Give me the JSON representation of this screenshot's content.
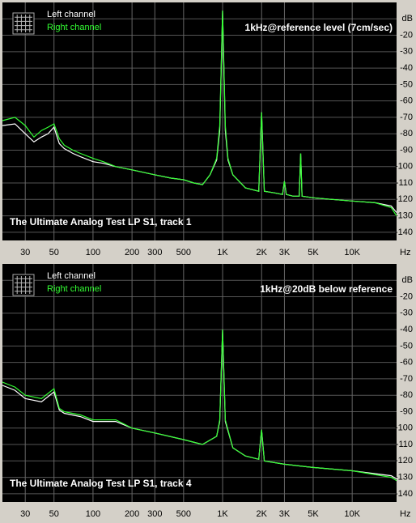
{
  "chart_data": [
    {
      "type": "line",
      "title": "1kHz@reference level (7cm/sec)",
      "annotation": "The Ultimate Analog Test LP S1, track 1",
      "x_label": "Hz",
      "log_x": true,
      "grid": true,
      "xlim": [
        20,
        22000
      ],
      "ylim": [
        -145,
        0
      ],
      "xticks": [
        30,
        50,
        100,
        200,
        300,
        500,
        {
          "value": 1000,
          "label": "1K"
        },
        {
          "value": 2000,
          "label": "2K"
        },
        {
          "value": 3000,
          "label": "3K"
        },
        {
          "value": 5000,
          "label": "5K"
        },
        {
          "value": 10000,
          "label": "10K"
        }
      ],
      "yticks": [
        {
          "value": -10,
          "label": "dB"
        },
        -20,
        -30,
        -40,
        -50,
        -60,
        -70,
        -80,
        -90,
        -100,
        -110,
        -120,
        -130,
        -140
      ],
      "x": [
        20,
        25,
        30,
        35,
        40,
        45,
        50,
        55,
        60,
        70,
        80,
        100,
        120,
        150,
        200,
        300,
        400,
        500,
        600,
        700,
        800,
        900,
        950,
        1000,
        1050,
        1100,
        1200,
        1500,
        1900,
        2000,
        2100,
        2500,
        2900,
        3000,
        3100,
        3500,
        3900,
        4000,
        4100,
        5000,
        7000,
        10000,
        15000,
        20000,
        22000
      ],
      "series": [
        {
          "name": "Left channel",
          "color": "#ffffff",
          "values": [
            -75,
            -74,
            -80,
            -85,
            -82,
            -80,
            -76,
            -86,
            -89,
            -92,
            -94,
            -97,
            -98,
            -100,
            -102,
            -105,
            -107,
            -108,
            -110,
            -111,
            -105,
            -96,
            -78,
            -5,
            -78,
            -96,
            -105,
            -113,
            -115,
            -67,
            -115,
            -116,
            -117,
            -109,
            -117,
            -118,
            -118,
            -92,
            -118,
            -119,
            -120,
            -121,
            -122,
            -124,
            -128
          ]
        },
        {
          "name": "Right channel",
          "color": "#33ff33",
          "values": [
            -72,
            -70,
            -75,
            -82,
            -78,
            -76,
            -74,
            -83,
            -87,
            -90,
            -92,
            -95,
            -97,
            -100,
            -102,
            -105,
            -107,
            -108,
            -110,
            -111,
            -105,
            -95,
            -75,
            -5,
            -75,
            -95,
            -105,
            -113,
            -115,
            -67,
            -115,
            -116,
            -117,
            -109,
            -117,
            -118,
            -118,
            -92,
            -118,
            -119,
            -120,
            -121,
            -122,
            -125,
            -130
          ]
        }
      ]
    },
    {
      "type": "line",
      "title": "1kHz@20dB below reference",
      "annotation": "The Ultimate Analog Test LP S1, track 4",
      "x_label": "Hz",
      "log_x": true,
      "grid": true,
      "xlim": [
        20,
        22000
      ],
      "ylim": [
        -145,
        0
      ],
      "xticks": [
        30,
        50,
        100,
        200,
        300,
        500,
        {
          "value": 1000,
          "label": "1K"
        },
        {
          "value": 2000,
          "label": "2K"
        },
        {
          "value": 3000,
          "label": "3K"
        },
        {
          "value": 5000,
          "label": "5K"
        },
        {
          "value": 10000,
          "label": "10K"
        }
      ],
      "yticks": [
        {
          "value": -10,
          "label": "dB"
        },
        -20,
        -30,
        -40,
        -50,
        -60,
        -70,
        -80,
        -90,
        -100,
        -110,
        -120,
        -130,
        -140
      ],
      "x": [
        20,
        25,
        30,
        40,
        50,
        55,
        60,
        80,
        100,
        150,
        200,
        300,
        500,
        700,
        900,
        950,
        1000,
        1050,
        1200,
        1500,
        1900,
        2000,
        2100,
        3000,
        5000,
        10000,
        20000,
        22000
      ],
      "series": [
        {
          "name": "Left channel",
          "color": "#ffffff",
          "values": [
            -74,
            -77,
            -82,
            -84,
            -78,
            -89,
            -91,
            -93,
            -96,
            -96,
            -100,
            -103,
            -107,
            -110,
            -105,
            -96,
            -40,
            -96,
            -112,
            -117,
            -119,
            -101,
            -120,
            -122,
            -124,
            -126,
            -129,
            -131
          ]
        },
        {
          "name": "Right channel",
          "color": "#33ff33",
          "values": [
            -72,
            -75,
            -80,
            -82,
            -76,
            -88,
            -90,
            -92,
            -95,
            -95,
            -100,
            -103,
            -107,
            -110,
            -105,
            -95,
            -40,
            -95,
            -112,
            -117,
            -119,
            -101,
            -120,
            -122,
            -124,
            -126,
            -130,
            -132
          ]
        }
      ]
    }
  ]
}
